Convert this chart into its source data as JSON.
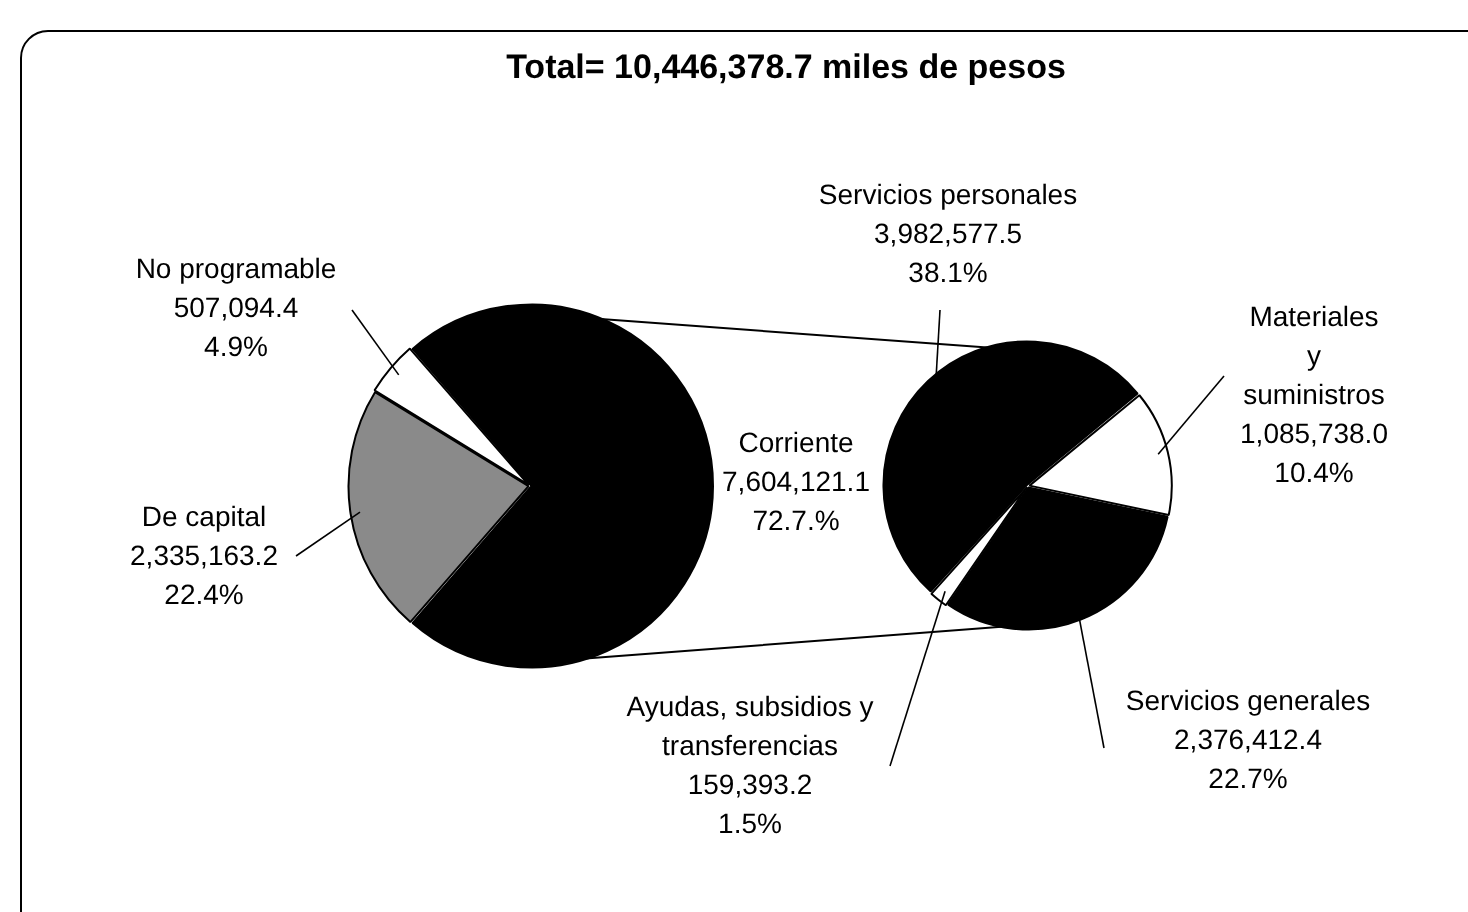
{
  "chart_data": [
    {
      "type": "pie",
      "title": "Total= 10,446,378.7 miles de pesos",
      "categories": [
        "Corriente",
        "De capital",
        "No programable"
      ],
      "values": [
        7604121.1,
        2335163.2,
        507094.4
      ],
      "colors": [
        "#000000",
        "#8a8a8a",
        "#ffffff"
      ],
      "value_labels": [
        "7,604,121.1\n72.7.%",
        "2,335,163.2\n22.4%",
        "507,094.4\n4.9%"
      ]
    },
    {
      "type": "pie",
      "categories": [
        "Servicios personales",
        "Materiales y suministros",
        "Servicios generales",
        "Ayudas, subsidios y transferencias"
      ],
      "values": [
        3982577.5,
        1085738.0,
        2376412.4,
        159393.2
      ],
      "colors": [
        "#000000",
        "#ffffff",
        "#000000",
        "#ffffff"
      ],
      "value_labels": [
        "3,982,577.5\n38.1%",
        "1,085,738.0\n10.4%",
        "2,376,412.4\n22.7%",
        "159,393.2\n1.5%"
      ]
    }
  ]
}
